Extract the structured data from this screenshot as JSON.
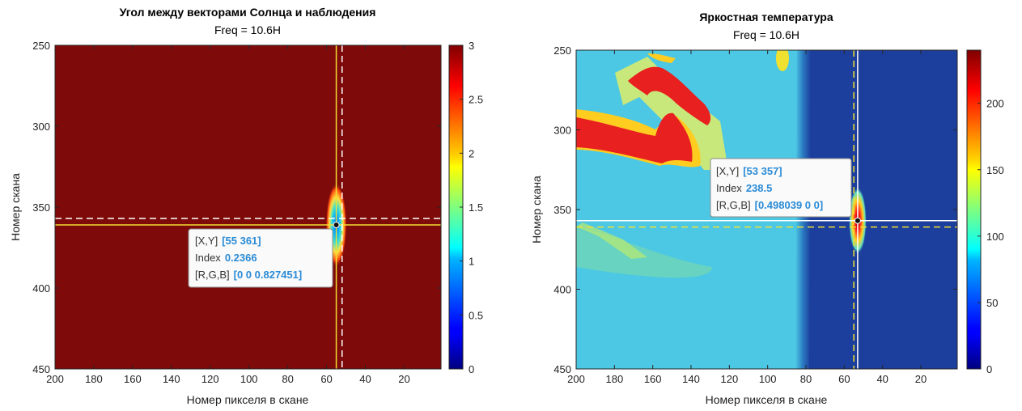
{
  "chart_data": [
    {
      "type": "heatmap",
      "title": "Угол между векторами Солнца и наблюдения",
      "subtitle": "Freq = 10.6H",
      "xlabel": "Номер пикселя в скане",
      "ylabel": "Номер скана",
      "xlim": [
        200,
        1
      ],
      "ylim": [
        250,
        450
      ],
      "xticks": [
        "200",
        "180",
        "160",
        "140",
        "120",
        "100",
        "80",
        "60",
        "40",
        "20"
      ],
      "yticks": [
        "250",
        "300",
        "350",
        "400",
        "450"
      ],
      "colorbar": {
        "range": [
          0,
          3
        ],
        "ticks": [
          "0",
          "0.5",
          "1",
          "1.5",
          "2",
          "2.5",
          "3"
        ]
      },
      "background_value": 3,
      "feature": {
        "x": 55,
        "y": 361,
        "value": 0.2366
      },
      "crosshair_solid": {
        "x": 55,
        "y": 361,
        "color": "#f0e030"
      },
      "crosshair_dashed": {
        "x": 52,
        "y": 357,
        "color": "#ffffff"
      },
      "datatip": {
        "rows": [
          {
            "key": "[X,Y]",
            "value": "[55 361]"
          },
          {
            "key": "Index",
            "value": "0.2366"
          },
          {
            "key": "[R,G,B]",
            "value": "[0 0 0.827451]"
          }
        ]
      }
    },
    {
      "type": "heatmap",
      "title": "Яркостная температура",
      "subtitle": "Freq = 10.6H",
      "xlabel": "Номер пикселя в скане",
      "ylabel": "Номер скана",
      "xlim": [
        200,
        1
      ],
      "ylim": [
        250,
        450
      ],
      "xticks": [
        "200",
        "180",
        "160",
        "140",
        "120",
        "100",
        "80",
        "60",
        "40",
        "20"
      ],
      "yticks": [
        "250",
        "300",
        "350",
        "400",
        "450"
      ],
      "colorbar": {
        "range": [
          0,
          240
        ],
        "ticks": [
          "0",
          "50",
          "100",
          "150",
          "200"
        ]
      },
      "regions": {
        "ocean_value": 15,
        "land_value": 85,
        "boundary_x": 78,
        "hot_value": 215
      },
      "feature": {
        "x": 53,
        "y": 357,
        "value": 238.5
      },
      "crosshair_solid": {
        "x": 53,
        "y": 357,
        "color": "#ffffff"
      },
      "crosshair_dashed": {
        "x": 55,
        "y": 361,
        "color": "#f0e030"
      },
      "datatip": {
        "rows": [
          {
            "key": "[X,Y]",
            "value": "[53 357]"
          },
          {
            "key": "Index",
            "value": "238.5"
          },
          {
            "key": "[R,G,B]",
            "value": "[0.498039 0 0]"
          }
        ]
      }
    }
  ]
}
